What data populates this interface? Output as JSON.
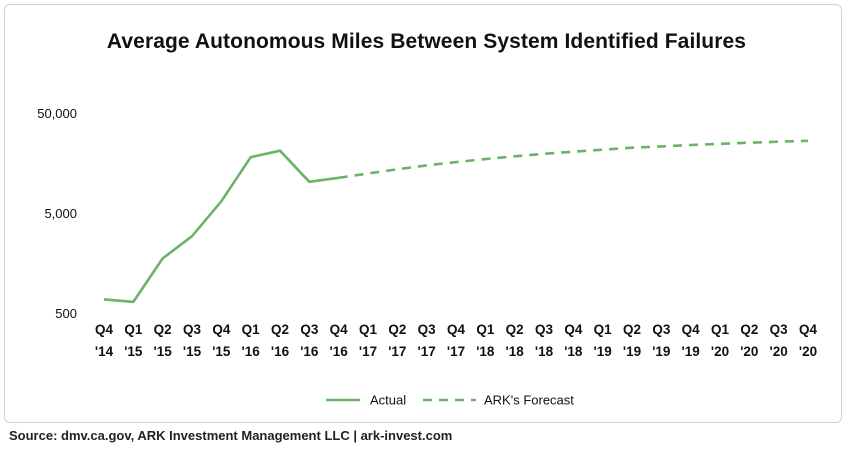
{
  "chart_data": {
    "type": "line",
    "title": "Average Autonomous Miles Between System Identified Failures",
    "xlabel": "",
    "ylabel": "",
    "yscale": "log",
    "ylim": [
      500,
      50000
    ],
    "yticks": [
      "50,000",
      "5,000",
      "500"
    ],
    "yticks_values": [
      50000,
      5000,
      500
    ],
    "categories": [
      "Q4 '14",
      "Q1 '15",
      "Q2 '15",
      "Q3 '15",
      "Q4 '15",
      "Q1 '16",
      "Q2 '16",
      "Q3 '16",
      "Q4 '16",
      "Q1 '17",
      "Q2 '17",
      "Q3 '17",
      "Q4 '17",
      "Q1 '18",
      "Q2 '18",
      "Q3 '18",
      "Q4 '18",
      "Q1 '19",
      "Q2 '19",
      "Q3 '19",
      "Q4 '19",
      "Q1 '20",
      "Q2 '20",
      "Q3 '20",
      "Q4 '20"
    ],
    "category_lines": [
      [
        "Q4",
        "'14"
      ],
      [
        "Q1",
        "'15"
      ],
      [
        "Q2",
        "'15"
      ],
      [
        "Q3",
        "'15"
      ],
      [
        "Q4",
        "'15"
      ],
      [
        "Q1",
        "'16"
      ],
      [
        "Q2",
        "'16"
      ],
      [
        "Q3",
        "'16"
      ],
      [
        "Q4",
        "'16"
      ],
      [
        "Q1",
        "'17"
      ],
      [
        "Q2",
        "'17"
      ],
      [
        "Q3",
        "'17"
      ],
      [
        "Q4",
        "'17"
      ],
      [
        "Q1",
        "'18"
      ],
      [
        "Q2",
        "'18"
      ],
      [
        "Q3",
        "'18"
      ],
      [
        "Q4",
        "'18"
      ],
      [
        "Q1",
        "'19"
      ],
      [
        "Q2",
        "'19"
      ],
      [
        "Q3",
        "'19"
      ],
      [
        "Q4",
        "'19"
      ],
      [
        "Q1",
        "'20"
      ],
      [
        "Q2",
        "'20"
      ],
      [
        "Q3",
        "'20"
      ],
      [
        "Q4",
        "'20"
      ]
    ],
    "series": [
      {
        "name": "Actual",
        "style": "solid",
        "color": "#6ab46a",
        "values": [
          700,
          660,
          1800,
          3000,
          6700,
          18500,
          21500,
          10500,
          11500,
          null,
          null,
          null,
          null,
          null,
          null,
          null,
          null,
          null,
          null,
          null,
          null,
          null,
          null,
          null,
          null
        ]
      },
      {
        "name": "ARK's Forecast",
        "style": "dashed",
        "color": "#6ab46a",
        "values": [
          null,
          null,
          null,
          null,
          null,
          null,
          null,
          null,
          11500,
          12700,
          14000,
          15300,
          16500,
          17700,
          18900,
          20000,
          21000,
          22000,
          23000,
          23700,
          24500,
          25200,
          25800,
          26400,
          27000
        ]
      }
    ],
    "legend": {
      "position": "bottom-center",
      "entries": [
        "Actual",
        "ARK's Forecast"
      ]
    },
    "grid": false
  },
  "source": "Source: dmv.ca.gov, ARK Investment Management LLC | ark-invest.com"
}
